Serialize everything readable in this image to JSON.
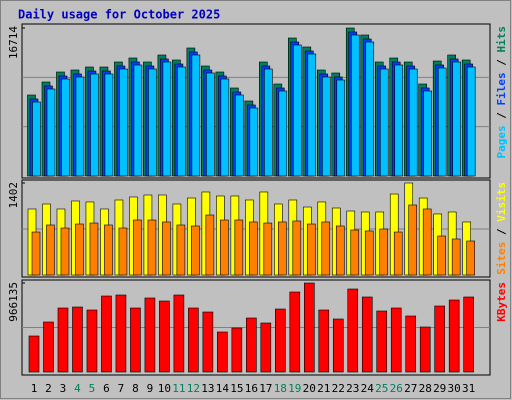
{
  "chart_data": [
    {
      "type": "bar",
      "title": "Daily usage for October 2025",
      "ylim": [
        0,
        16714
      ],
      "yticks": [
        16714
      ],
      "grid_divisions": 3,
      "series": [
        {
          "name": "Hits",
          "color": "#00805c",
          "values": [
            9147,
            10615,
            11745,
            11971,
            12309,
            12309,
            12874,
            13326,
            12874,
            13665,
            13100,
            14455,
            12422,
            11745,
            9938,
            8470,
            12874,
            10390,
            15584,
            14568,
            11971,
            11632,
            16714,
            15923,
            12874,
            13326,
            12874,
            10390,
            12987,
            13665,
            13100
          ]
        },
        {
          "name": "Files",
          "color": "#0040ff",
          "values": [
            8697,
            10165,
            11295,
            11521,
            11859,
            11859,
            12424,
            12876,
            12424,
            13215,
            12650,
            14005,
            11972,
            11295,
            9488,
            8020,
            12424,
            9940,
            15134,
            14118,
            11521,
            11182,
            16264,
            15473,
            12424,
            12876,
            12424,
            9940,
            12537,
            13215,
            12650
          ]
        },
        {
          "name": "Pages",
          "color": "#00c0ff",
          "values": [
            8357,
            9825,
            10955,
            11181,
            11519,
            11519,
            12084,
            12536,
            12084,
            12875,
            12310,
            13665,
            11632,
            10955,
            9148,
            7680,
            12084,
            9600,
            14794,
            13778,
            11181,
            10842,
            15924,
            15133,
            12084,
            12536,
            12084,
            9600,
            12197,
            12875,
            12310
          ]
        }
      ]
    },
    {
      "type": "bar",
      "ylim": [
        0,
        1402
      ],
      "yticks": [
        1402
      ],
      "grid_divisions": 2,
      "series": [
        {
          "name": "Visits",
          "color": "#ffff00",
          "values": [
            1006,
            1082,
            1006,
            1128,
            1113,
            1006,
            1143,
            1189,
            1219,
            1219,
            1082,
            1173,
            1265,
            1204,
            1204,
            1143,
            1265,
            1082,
            1143,
            1036,
            1113,
            1021,
            975,
            960,
            960,
            1234,
            1402,
            1173,
            930,
            960,
            808
          ]
        },
        {
          "name": "Sites",
          "color": "#ff8000",
          "values": [
            655,
            762,
            716,
            777,
            792,
            762,
            716,
            838,
            838,
            808,
            762,
            747,
            914,
            838,
            838,
            808,
            792,
            808,
            823,
            777,
            808,
            747,
            686,
            671,
            701,
            655,
            1067,
            1006,
            594,
            549,
            518
          ]
        }
      ]
    },
    {
      "type": "bar",
      "ylim": [
        0,
        966135
      ],
      "yticks": [
        966135
      ],
      "grid_divisions": 2,
      "series": [
        {
          "name": "KBytes",
          "color": "#ff0000",
          "values": [
            390780,
            542750,
            694720,
            705575,
            673010,
            824980,
            835835,
            694720,
            803270,
            770705,
            835835,
            694720,
            651300,
            434200,
            477620,
            586170,
            531895,
            683865,
            868400,
            966135,
            673010,
            575315,
            900965,
            814125,
            662155,
            694720,
            607880,
            488475,
            716430,
            781560,
            814125
          ]
        }
      ],
      "categories": [
        "1",
        "2",
        "3",
        "4",
        "5",
        "6",
        "7",
        "8",
        "9",
        "10",
        "11",
        "12",
        "13",
        "14",
        "15",
        "16",
        "17",
        "18",
        "19",
        "20",
        "21",
        "22",
        "23",
        "24",
        "25",
        "26",
        "27",
        "28",
        "29",
        "30",
        "31"
      ],
      "category_colors": [
        "#000000",
        "#000000",
        "#000000",
        "#00805c",
        "#00805c",
        "#000000",
        "#000000",
        "#000000",
        "#000000",
        "#000000",
        "#00805c",
        "#00805c",
        "#000000",
        "#000000",
        "#000000",
        "#000000",
        "#000000",
        "#00805c",
        "#00805c",
        "#000000",
        "#000000",
        "#000000",
        "#000000",
        "#000000",
        "#00805c",
        "#00805c",
        "#000000",
        "#000000",
        "#000000",
        "#000000",
        "#000000"
      ]
    }
  ]
}
